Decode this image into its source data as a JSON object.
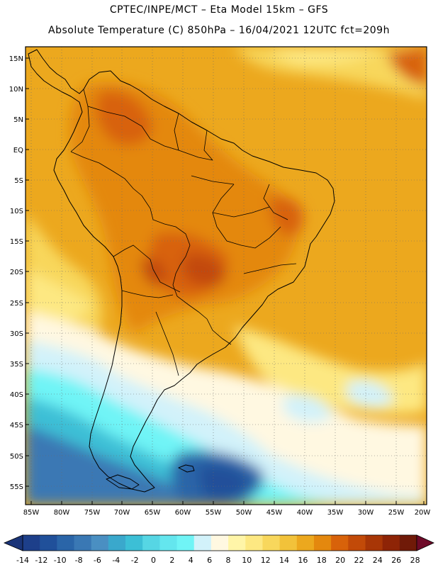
{
  "header": {
    "line1": "CPTEC/INPE/MCT –  Eta Model 15km – GFS",
    "line2": "Absolute Temperature (C) 850hPa – 16/04/2021 12UTC fct=209h"
  },
  "map": {
    "lat_ticks": [
      "15N",
      "10N",
      "5N",
      "EQ",
      "5S",
      "10S",
      "15S",
      "20S",
      "25S",
      "30S",
      "35S",
      "40S",
      "45S",
      "50S",
      "55S"
    ],
    "lon_ticks": [
      "85W",
      "80W",
      "75W",
      "70W",
      "65W",
      "60W",
      "55W",
      "50W",
      "45W",
      "40W",
      "35W",
      "30W",
      "25W",
      "20W"
    ],
    "grid": "dotted"
  },
  "colorbar": {
    "labels": [
      "-14",
      "-12",
      "-10",
      "-8",
      "-6",
      "-4",
      "-2",
      "0",
      "2",
      "4",
      "6",
      "8",
      "10",
      "12",
      "14",
      "16",
      "18",
      "20",
      "22",
      "24",
      "26",
      "28"
    ],
    "colors": [
      "#1d3f8a",
      "#20509a",
      "#2a65a8",
      "#3a78b4",
      "#4a8fc2",
      "#3aa8cc",
      "#3cbfd6",
      "#56d6e4",
      "#64e6ee",
      "#70f4f6",
      "#d2f2fa",
      "#fff8e1",
      "#fff5a8",
      "#fde882",
      "#f8d75c",
      "#f2c23a",
      "#eca81e",
      "#e4880e",
      "#d8620a",
      "#c24a08",
      "#a83606",
      "#8e2406",
      "#701a08"
    ],
    "end_low": "#1a3478",
    "end_high": "#6e0a28"
  }
}
